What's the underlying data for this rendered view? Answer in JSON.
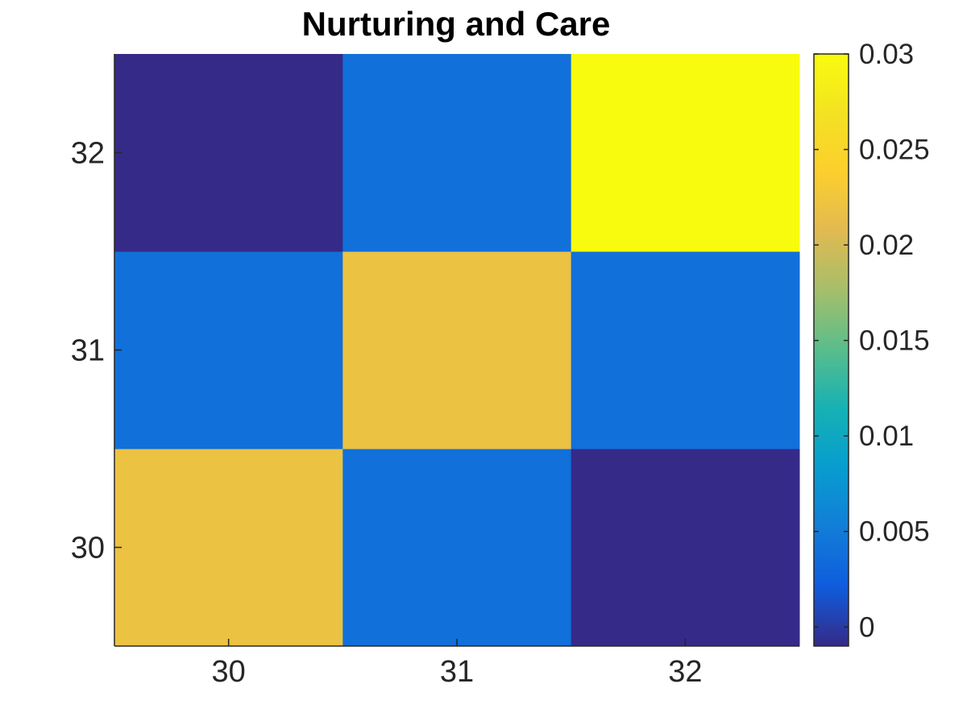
{
  "chart_data": {
    "type": "heatmap",
    "title": "Nurturing and Care",
    "xlabel": "",
    "ylabel": "",
    "x_categories": [
      "30",
      "31",
      "32"
    ],
    "y_categories": [
      "30",
      "31",
      "32"
    ],
    "values": [
      [
        0.022,
        0.004,
        -0.001
      ],
      [
        0.004,
        0.022,
        0.004
      ],
      [
        -0.001,
        0.004,
        0.03
      ]
    ],
    "colorbar": {
      "range": [
        -0.001,
        0.03
      ],
      "ticks": [
        0,
        0.005,
        0.01,
        0.015,
        0.02,
        0.025,
        0.03
      ],
      "tick_labels": [
        "0",
        "0.005",
        "0.01",
        "0.015",
        "0.02",
        "0.025",
        "0.03"
      ],
      "colormap": "parula"
    },
    "grid": false
  }
}
